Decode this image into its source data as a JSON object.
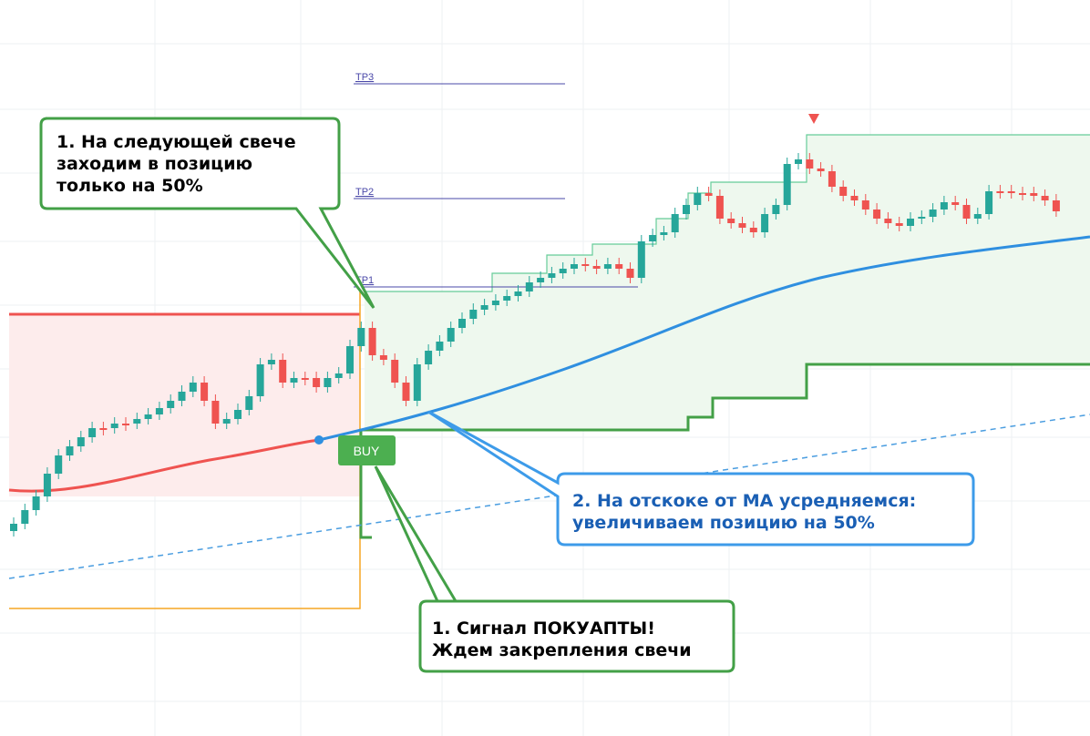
{
  "levels": {
    "tp3": "TP3",
    "tp2": "TP2",
    "tp1": "TP1"
  },
  "signal": "BUY",
  "callouts": [
    {
      "lines": [
        "1. На следующей свече",
        "заходим в позицию",
        "только на 50%"
      ]
    },
    {
      "lines": [
        "2. На отскоке от МА усредняемся:",
        "увеличиваем позицию на 50%"
      ]
    },
    {
      "lines": [
        "1. Сигнал ПОКУАПТЫ!",
        "Ждем закрепления свечи"
      ]
    }
  ]
}
